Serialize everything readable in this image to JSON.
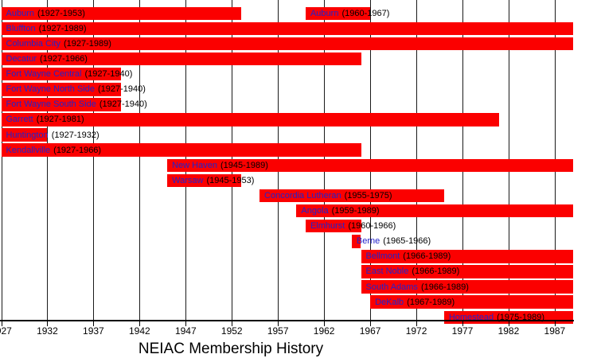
{
  "chart_data": {
    "type": "bar",
    "orientation": "horizontal-gantt",
    "title": "NEIAC Membership History",
    "xlabel": "",
    "ylabel": "",
    "xlim": [
      1927,
      1989
    ],
    "x_ticks": [
      1927,
      1932,
      1937,
      1942,
      1947,
      1952,
      1957,
      1962,
      1967,
      1972,
      1977,
      1982,
      1987
    ],
    "grid": true,
    "legend": "none",
    "colors": {
      "bar": "#fb0000",
      "member_link": "#2222cc",
      "year_text": "#000000",
      "grid": "#1a1a1a",
      "axis": "#000000",
      "background": "#ffffff"
    },
    "members": [
      {
        "name": "Auburn",
        "periods": [
          {
            "start": 1927,
            "end": 1953,
            "label": "(1927-1953)"
          },
          {
            "start": 1960,
            "end": 1967,
            "label": "(1960-1967)"
          }
        ]
      },
      {
        "name": "Bluffton",
        "periods": [
          {
            "start": 1927,
            "end": 1989,
            "label": "(1927-1989)"
          }
        ]
      },
      {
        "name": "Columbia City",
        "periods": [
          {
            "start": 1927,
            "end": 1989,
            "label": "(1927-1989)"
          }
        ]
      },
      {
        "name": "Decatur",
        "periods": [
          {
            "start": 1927,
            "end": 1966,
            "label": "(1927-1966)"
          }
        ]
      },
      {
        "name": "Fort Wayne Central",
        "periods": [
          {
            "start": 1927,
            "end": 1940,
            "label": "(1927-1940)"
          }
        ]
      },
      {
        "name": "Fort Wayne North Side",
        "periods": [
          {
            "start": 1927,
            "end": 1940,
            "label": "(1927-1940)"
          }
        ]
      },
      {
        "name": "Fort Wayne South Side",
        "periods": [
          {
            "start": 1927,
            "end": 1940,
            "label": "(1927-1940)"
          }
        ]
      },
      {
        "name": "Garrett",
        "periods": [
          {
            "start": 1927,
            "end": 1981,
            "label": "(1927-1981)"
          }
        ]
      },
      {
        "name": "Huntington",
        "periods": [
          {
            "start": 1927,
            "end": 1932,
            "label": "(1927-1932)"
          }
        ]
      },
      {
        "name": "Kendallville",
        "periods": [
          {
            "start": 1927,
            "end": 1966,
            "label": "(1927-1966)"
          }
        ]
      },
      {
        "name": "New Haven",
        "periods": [
          {
            "start": 1945,
            "end": 1989,
            "label": "(1945-1989)"
          }
        ]
      },
      {
        "name": "Warsaw",
        "periods": [
          {
            "start": 1945,
            "end": 1953,
            "label": "(1945-1953)"
          }
        ]
      },
      {
        "name": "Concordia Lutheran",
        "periods": [
          {
            "start": 1955,
            "end": 1975,
            "label": "(1955-1975)"
          }
        ]
      },
      {
        "name": "Angola",
        "periods": [
          {
            "start": 1959,
            "end": 1989,
            "label": "(1959-1989)"
          }
        ]
      },
      {
        "name": "Elmhurst",
        "periods": [
          {
            "start": 1960,
            "end": 1966,
            "label": "(1960-1966)"
          }
        ]
      },
      {
        "name": "Berne",
        "periods": [
          {
            "start": 1965,
            "end": 1966,
            "label": "(1965-1966)"
          }
        ]
      },
      {
        "name": "Bellmont",
        "periods": [
          {
            "start": 1966,
            "end": 1989,
            "label": "(1966-1989)"
          }
        ]
      },
      {
        "name": "East Noble",
        "periods": [
          {
            "start": 1966,
            "end": 1989,
            "label": "(1966-1989)"
          }
        ]
      },
      {
        "name": "South Adams",
        "periods": [
          {
            "start": 1966,
            "end": 1989,
            "label": "(1966-1989)"
          }
        ]
      },
      {
        "name": "DeKalb",
        "periods": [
          {
            "start": 1967,
            "end": 1989,
            "label": "(1967-1989)"
          }
        ]
      },
      {
        "name": "Homestead",
        "periods": [
          {
            "start": 1975,
            "end": 1989,
            "label": "(1975-1989)"
          }
        ]
      }
    ]
  }
}
